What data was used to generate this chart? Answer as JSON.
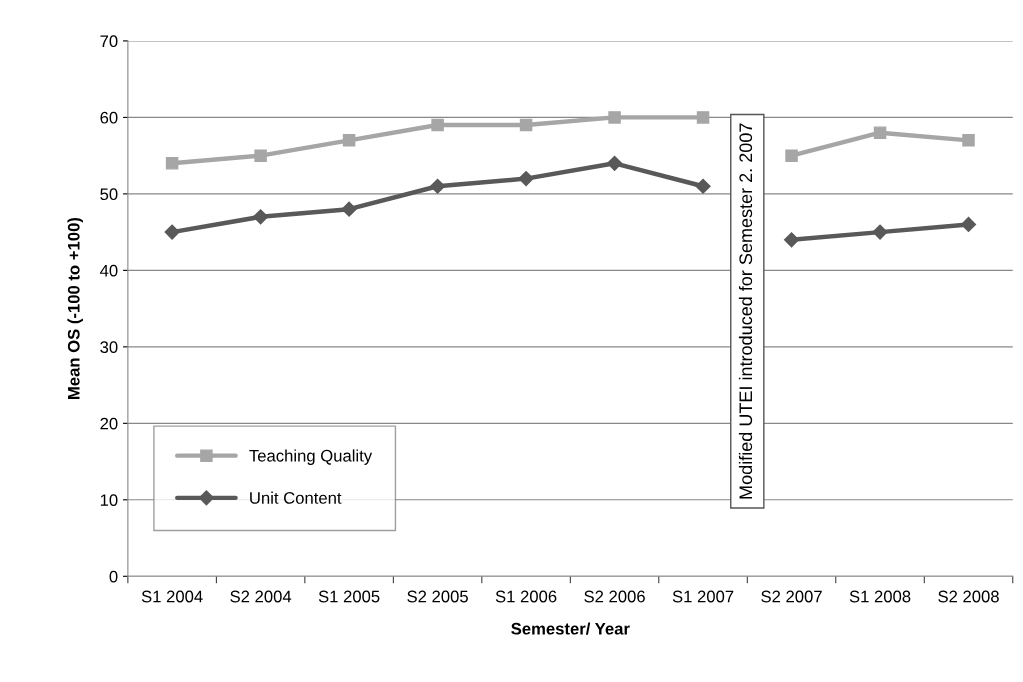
{
  "chart_data": {
    "type": "line",
    "xlabel": "Semester/ Year",
    "ylabel": "Mean OS (-100 to +100)",
    "categories": [
      "S1 2004",
      "S2 2004",
      "S1 2005",
      "S2 2005",
      "S1 2006",
      "S2 2006",
      "S1 2007",
      "S2 2007",
      "S1 2008",
      "S2 2008"
    ],
    "series": [
      {
        "name": "Teaching Quality",
        "color": "#a6a6a6",
        "marker": "square",
        "values": [
          54,
          55,
          57,
          59,
          59,
          60,
          60,
          null,
          null,
          null
        ]
      },
      {
        "name": "Unit Content",
        "color": "#595959",
        "marker": "diamond",
        "values": [
          45,
          47,
          48,
          51,
          52,
          54,
          51,
          null,
          null,
          null
        ]
      },
      {
        "color": "#a6a6a6",
        "marker": "square",
        "values": [
          null,
          null,
          null,
          null,
          null,
          null,
          null,
          55,
          58,
          57
        ]
      },
      {
        "color": "#595959",
        "marker": "diamond",
        "values": [
          null,
          null,
          null,
          null,
          null,
          null,
          null,
          44,
          45,
          46
        ]
      }
    ],
    "annotations": [
      "Modified UTEI introduced for Semester 2. 2007"
    ],
    "ylim": [
      0,
      70
    ],
    "yticks": [
      0,
      10,
      20,
      30,
      40,
      50,
      60,
      70
    ],
    "grid": "y",
    "legend": "bottom left",
    "line_style": "solid"
  }
}
